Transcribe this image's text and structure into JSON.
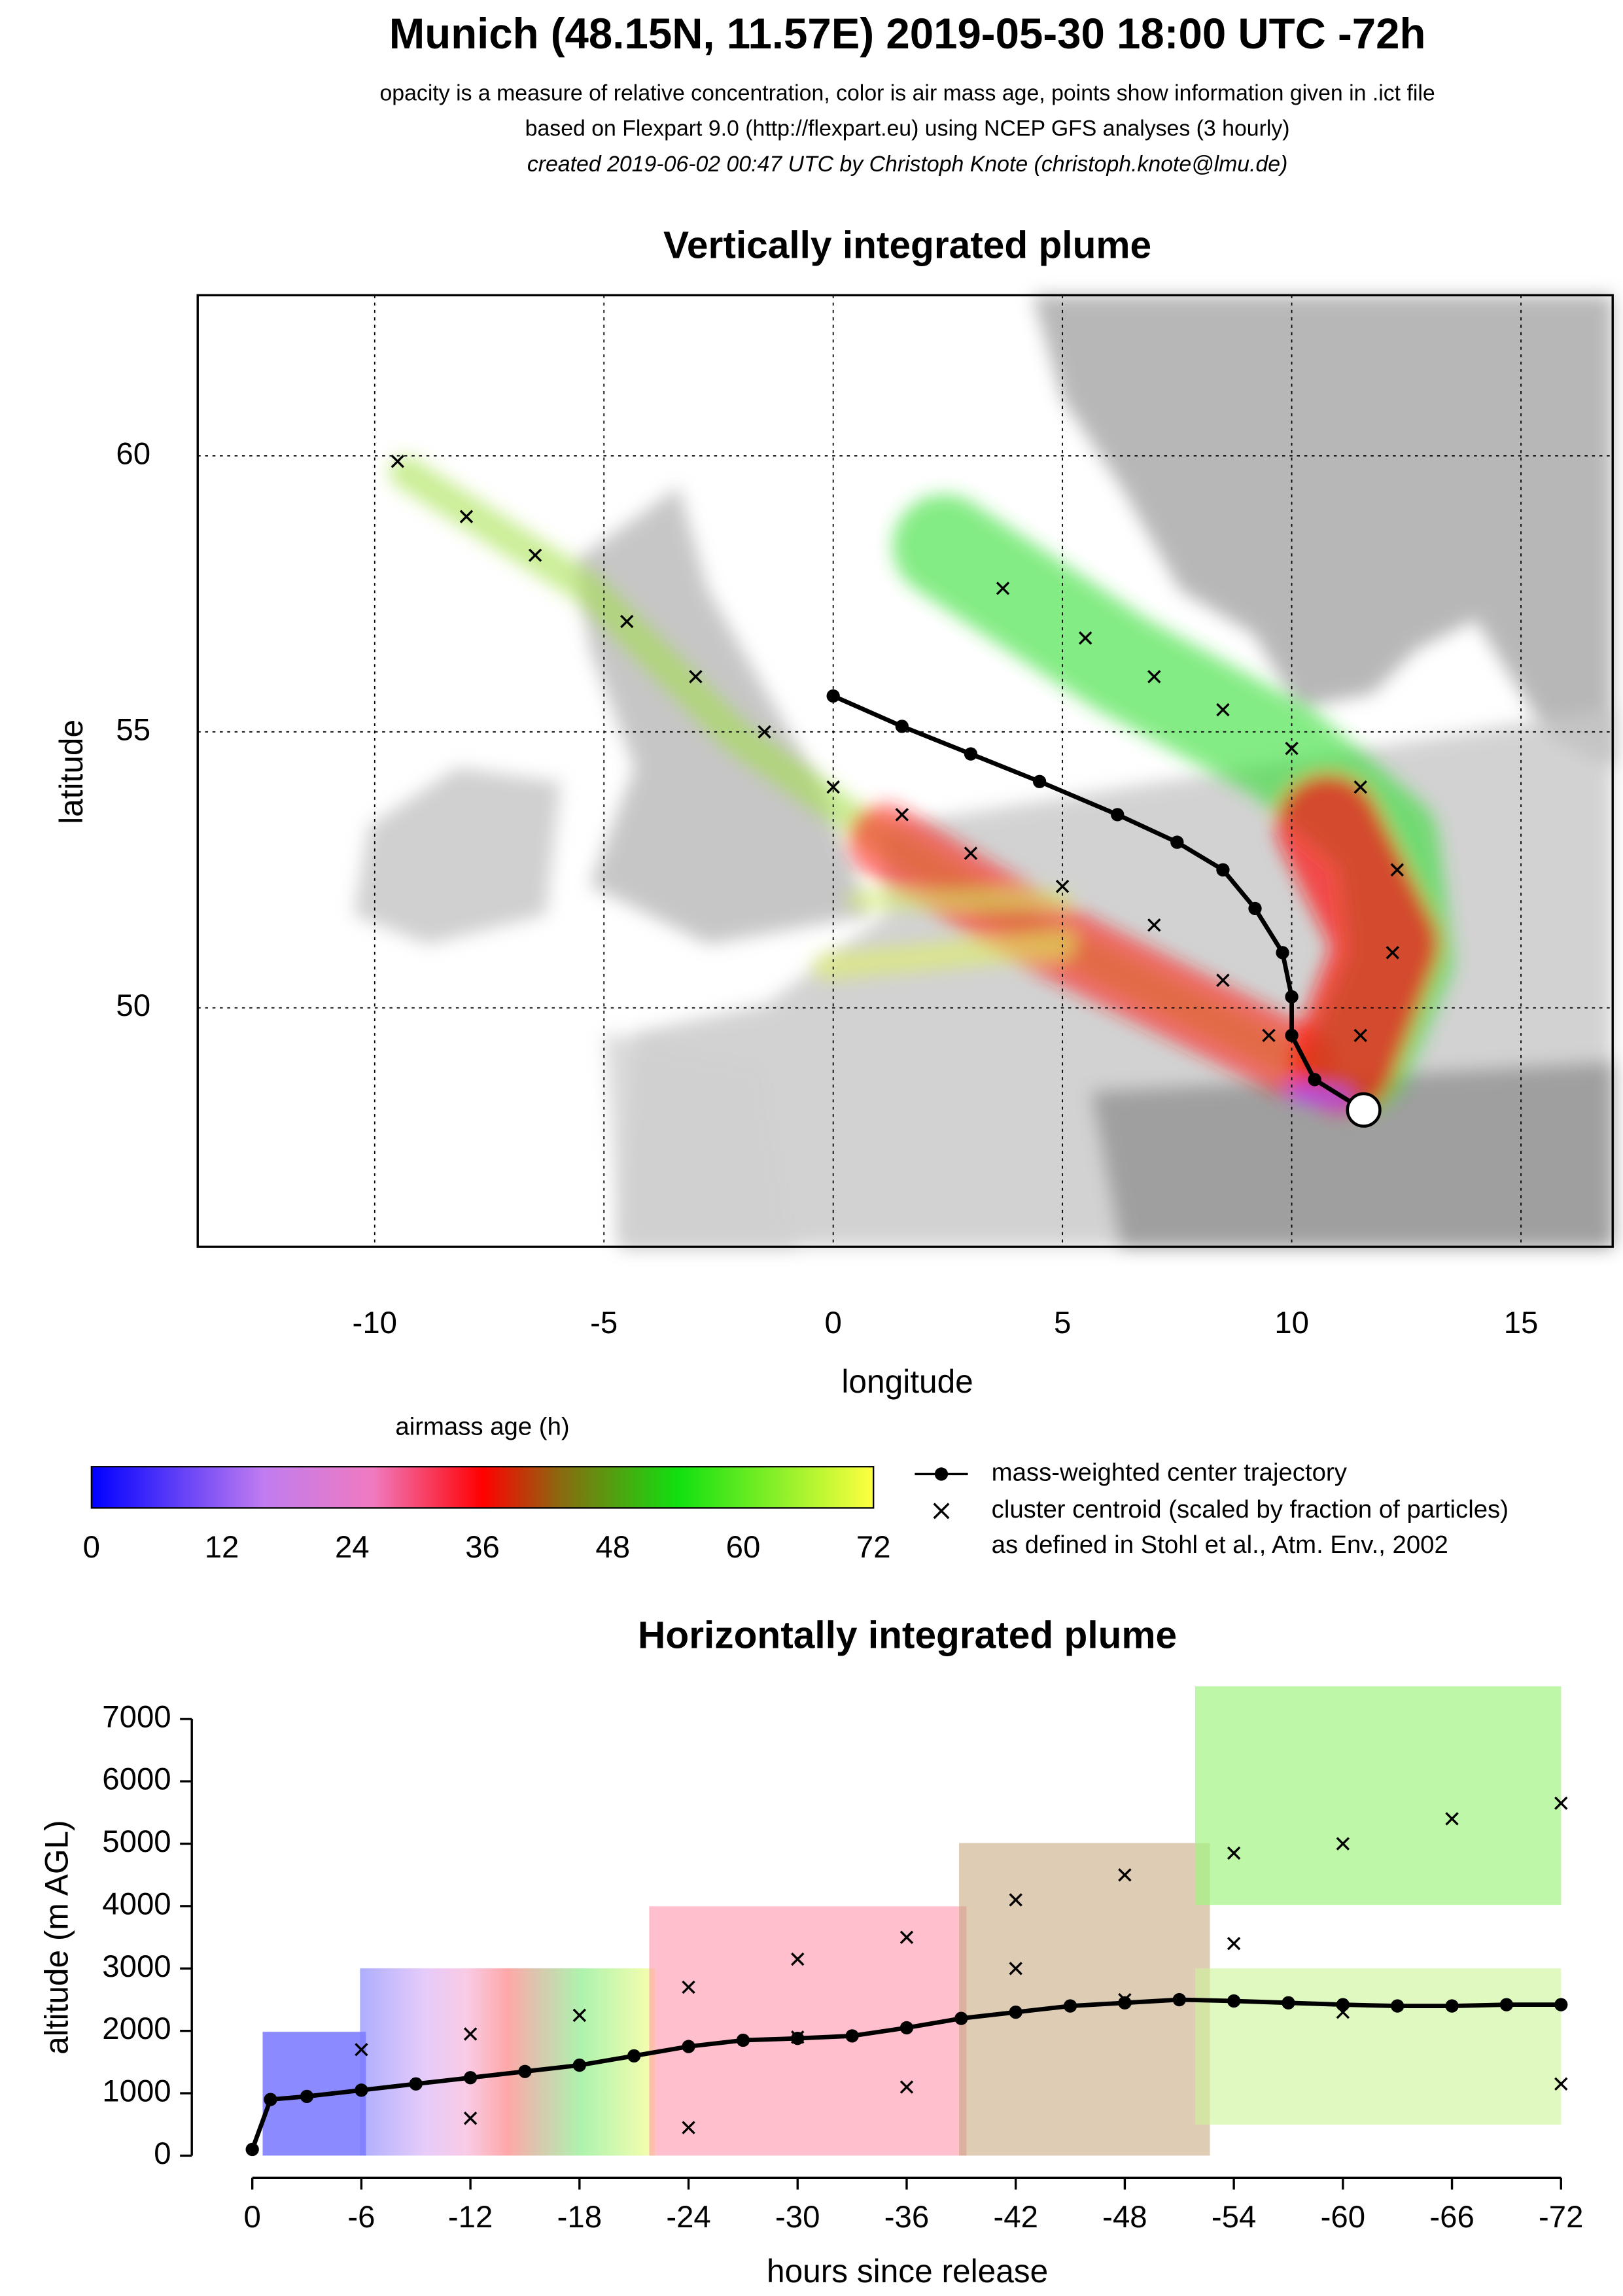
{
  "header": {
    "title": "Munich (48.15N, 11.57E) 2019-05-30 18:00 UTC -72h",
    "lines": [
      "opacity is a measure of relative concentration, color is air mass age, points show information given in .ict file",
      "based on Flexpart 9.0 (http://flexpart.eu) using NCEP GFS analyses (3 hourly)",
      "created 2019-06-02 00:47 UTC by Christoph Knote (christoph.knote@lmu.de)"
    ]
  },
  "chart_data": [
    {
      "type": "scatter",
      "title": "Vertically integrated plume",
      "x_label": "longitude",
      "y_label": "latitude",
      "xlim": [
        -13.86,
        17
      ],
      "ylim": [
        45.67,
        62.91
      ],
      "xticks": [
        -10,
        -5,
        0,
        5,
        10,
        15
      ],
      "yticks": [
        50,
        55,
        60
      ],
      "grid": true,
      "series": [
        {
          "name": "mass-weighted center trajectory",
          "color": "#000000",
          "marker": "dot-line",
          "x": [
            11.57,
            10.5,
            10.0,
            10.0,
            9.8,
            9.2,
            8.5,
            7.5,
            6.2,
            4.5,
            3.0,
            1.5,
            0.0
          ],
          "y": [
            48.15,
            48.7,
            49.5,
            50.2,
            51.0,
            51.8,
            52.5,
            53.0,
            53.5,
            54.1,
            54.6,
            55.1,
            55.65
          ]
        },
        {
          "name": "cluster centroid (scaled by fraction of particles)",
          "color": "#000000",
          "marker": "cross",
          "x": [
            -9.5,
            -8,
            -6.5,
            -4.5,
            -3,
            -1.5,
            0,
            1.5,
            3,
            5,
            7,
            8.5,
            9.5,
            3.7,
            5.5,
            7,
            8.5,
            10,
            11.5,
            12.3,
            12.2,
            11.5
          ],
          "y": [
            59.9,
            58.9,
            58.2,
            57.0,
            56.0,
            55.0,
            54.0,
            53.5,
            52.8,
            52.2,
            51.5,
            50.5,
            49.5,
            57.6,
            56.7,
            56.0,
            55.4,
            54.7,
            54.0,
            52.5,
            51.0,
            49.5
          ]
        }
      ],
      "legend_note": "as defined in Stohl et al., Atm. Env., 2002",
      "colorbar": {
        "label": "airmass age (h)",
        "lim": [
          0,
          72
        ],
        "ticks": [
          0,
          12,
          24,
          36,
          48,
          60,
          72
        ]
      }
    },
    {
      "type": "line",
      "title": "Horizontally integrated plume",
      "x_label": "hours since release",
      "y_label": "altitude (m AGL)",
      "xlim": [
        0,
        -72
      ],
      "ylim": [
        0,
        7000
      ],
      "xticks": [
        0,
        -6,
        -12,
        -18,
        -24,
        -30,
        -36,
        -42,
        -48,
        -54,
        -60,
        -66,
        -72
      ],
      "yticks": [
        0,
        1000,
        2000,
        3000,
        4000,
        5000,
        6000,
        7000
      ],
      "series": [
        {
          "color": "#000000",
          "marker": "dot-line",
          "x": [
            0,
            -1,
            -3,
            -6,
            -9,
            -12,
            -15,
            -18,
            -21,
            -24,
            -27,
            -30,
            -33,
            -36,
            -39,
            -42,
            -45,
            -48,
            -51,
            -54,
            -57,
            -60,
            -63,
            -66,
            -69,
            -72
          ],
          "y": [
            100,
            900,
            950,
            1050,
            1150,
            1250,
            1350,
            1450,
            1600,
            1750,
            1850,
            1880,
            1920,
            2050,
            2200,
            2300,
            2400,
            2450,
            2500,
            2480,
            2450,
            2420,
            2400,
            2400,
            2420,
            2420
          ]
        },
        {
          "color": "#000000",
          "marker": "cross",
          "x": [
            -6,
            -12,
            -18,
            -24,
            -30,
            -36,
            -42,
            -48,
            -54,
            -60,
            -66,
            -72,
            -12,
            -24,
            -36,
            -48,
            -60,
            -72,
            -30,
            -42,
            -54
          ],
          "y": [
            1700,
            1950,
            2250,
            2700,
            3150,
            3500,
            4100,
            4500,
            4850,
            5000,
            5400,
            5650,
            600,
            450,
            1100,
            2500,
            2300,
            1150,
            1900,
            3000,
            3400
          ]
        }
      ]
    }
  ]
}
